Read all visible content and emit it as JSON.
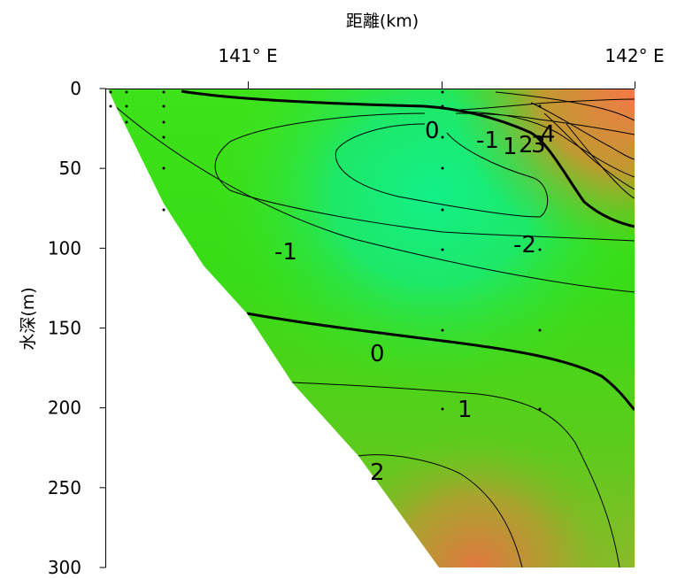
{
  "chart_data": {
    "type": "contour",
    "xlabel": "距離(km)",
    "ylabel": "水深(m)",
    "x_tick_labels": [
      "141° E",
      "142° E"
    ],
    "y_ticks": [
      0,
      50,
      100,
      150,
      200,
      250,
      300
    ],
    "ylim": [
      0,
      300
    ],
    "y_inverted": true,
    "contour_labels": [
      "0",
      "-1",
      "1",
      "2",
      "3",
      "4",
      "-1",
      "-2",
      "0",
      "1",
      "2"
    ],
    "colors": {
      "cold": "#10ee80",
      "mid": "#3dd815",
      "warm": "#f07a45",
      "bottom_mask": "#ffffff",
      "contour_line": "#000000"
    }
  }
}
